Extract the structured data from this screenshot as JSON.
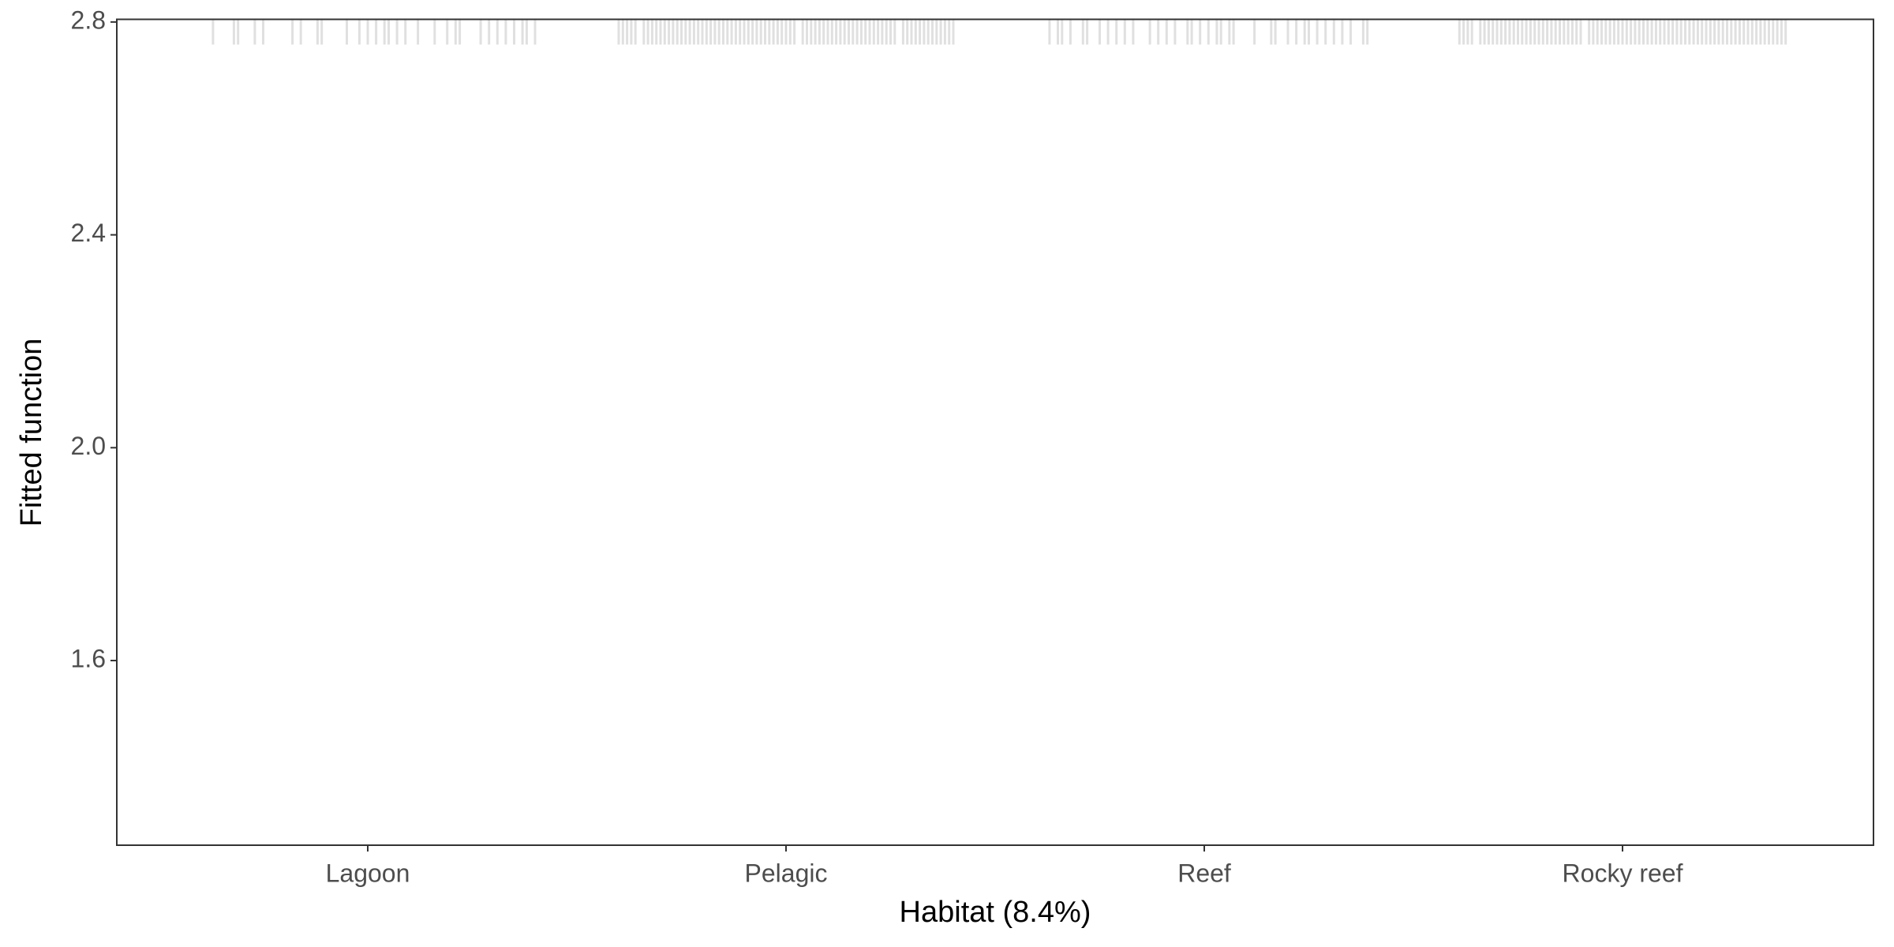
{
  "chart_data": {
    "type": "rug",
    "x_label": "Habitat  (8.4%)",
    "y_label": "Fitted function",
    "categories": [
      "Lagoon",
      "Pelagic",
      "Reef",
      "Rocky reef"
    ],
    "xlim": [
      0.4,
      4.6
    ],
    "ylim": [
      1.253,
      2.805
    ],
    "yticks": [
      1.6,
      {
        "value": 2,
        "label": "2.0"
      },
      2.4,
      2.8
    ],
    "color": "#e0e0e0",
    "x": [
      0.63,
      0.68,
      0.69,
      0.73,
      0.75,
      0.82,
      0.84,
      0.88,
      0.89,
      0.95,
      0.98,
      1.0,
      1.02,
      1.04,
      1.05,
      1.07,
      1.09,
      1.12,
      1.16,
      1.19,
      1.21,
      1.22,
      1.27,
      1.29,
      1.31,
      1.33,
      1.35,
      1.37,
      1.38,
      1.4,
      1.6,
      1.61,
      1.62,
      1.63,
      1.64,
      1.66,
      1.67,
      1.68,
      1.69,
      1.7,
      1.71,
      1.72,
      1.73,
      1.74,
      1.75,
      1.76,
      1.77,
      1.78,
      1.79,
      1.8,
      1.81,
      1.82,
      1.83,
      1.84,
      1.85,
      1.86,
      1.87,
      1.88,
      1.89,
      1.9,
      1.91,
      1.92,
      1.93,
      1.94,
      1.95,
      1.96,
      1.97,
      1.98,
      1.99,
      2.0,
      2.01,
      2.02,
      2.04,
      2.05,
      2.06,
      2.07,
      2.08,
      2.09,
      2.1,
      2.11,
      2.12,
      2.13,
      2.14,
      2.15,
      2.16,
      2.17,
      2.18,
      2.19,
      2.2,
      2.21,
      2.22,
      2.23,
      2.24,
      2.25,
      2.26,
      2.28,
      2.29,
      2.3,
      2.31,
      2.32,
      2.33,
      2.34,
      2.35,
      2.36,
      2.37,
      2.38,
      2.39,
      2.4,
      2.63,
      2.65,
      2.66,
      2.68,
      2.71,
      2.72,
      2.75,
      2.77,
      2.79,
      2.81,
      2.83,
      2.87,
      2.89,
      2.91,
      2.93,
      2.96,
      2.97,
      2.99,
      3.01,
      3.03,
      3.04,
      3.06,
      3.07,
      3.12,
      3.16,
      3.17,
      3.2,
      3.22,
      3.24,
      3.25,
      3.27,
      3.29,
      3.31,
      3.33,
      3.35,
      3.38,
      3.39,
      3.61,
      3.62,
      3.63,
      3.64,
      3.66,
      3.67,
      3.68,
      3.69,
      3.7,
      3.71,
      3.72,
      3.73,
      3.74,
      3.75,
      3.76,
      3.77,
      3.78,
      3.79,
      3.8,
      3.81,
      3.82,
      3.83,
      3.84,
      3.85,
      3.86,
      3.87,
      3.88,
      3.89,
      3.9,
      3.92,
      3.93,
      3.94,
      3.95,
      3.96,
      3.97,
      3.98,
      3.99,
      4.0,
      4.01,
      4.02,
      4.03,
      4.04,
      4.05,
      4.06,
      4.07,
      4.08,
      4.09,
      4.1,
      4.11,
      4.12,
      4.13,
      4.14,
      4.15,
      4.16,
      4.17,
      4.18,
      4.19,
      4.2,
      4.21,
      4.22,
      4.23,
      4.24,
      4.25,
      4.26,
      4.27,
      4.28,
      4.29,
      4.3,
      4.31,
      4.32,
      4.33,
      4.34,
      4.35,
      4.36,
      4.37,
      4.38,
      4.39
    ]
  }
}
